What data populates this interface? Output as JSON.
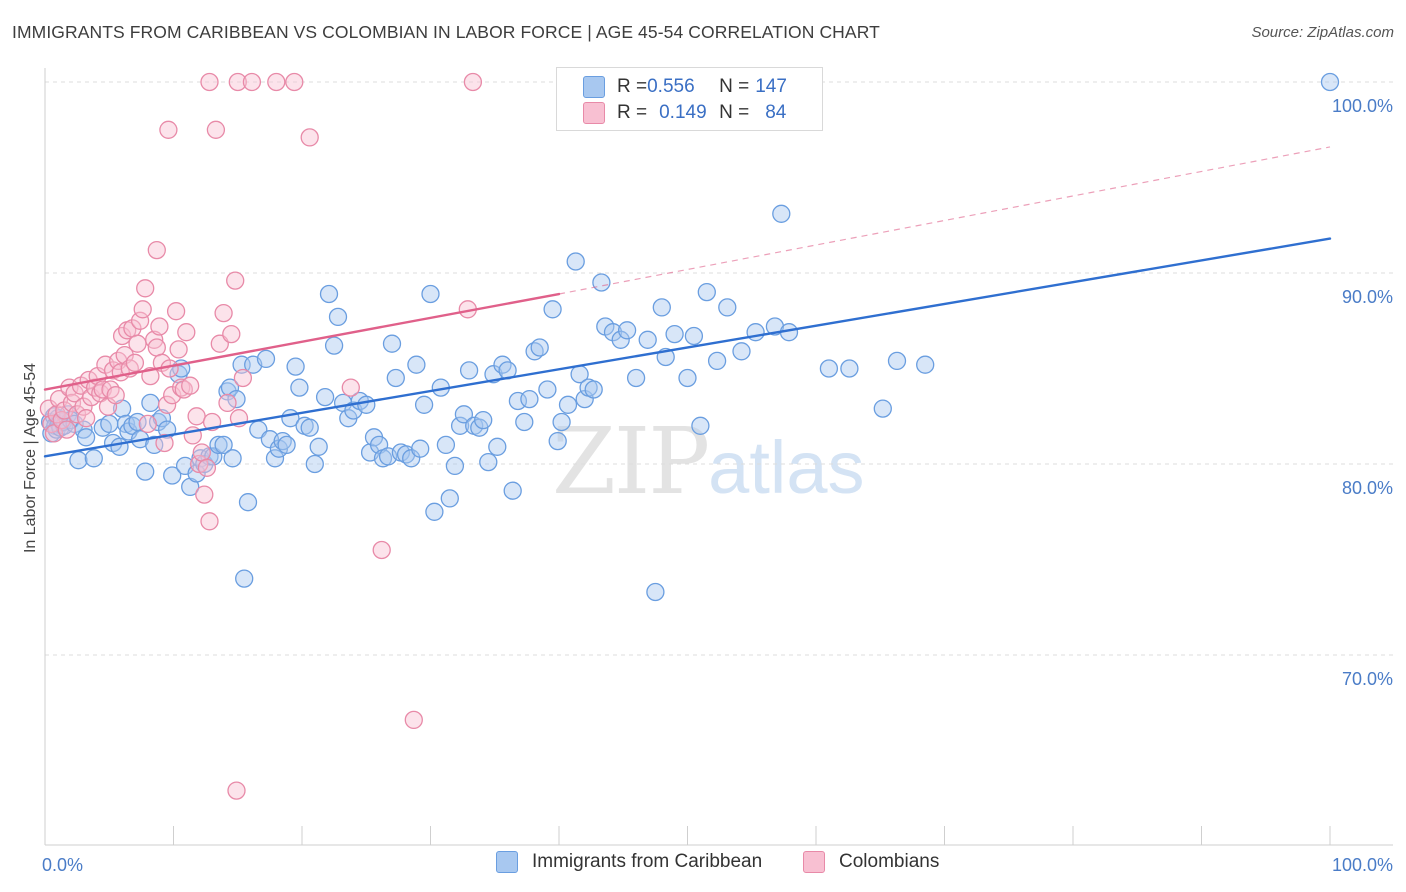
{
  "header": {
    "title": "IMMIGRANTS FROM CARIBBEAN VS COLOMBIAN IN LABOR FORCE | AGE 45-54 CORRELATION CHART",
    "source": "Source: ZipAtlas.com"
  },
  "watermark": {
    "zip": "ZIP",
    "atlas": "atlas"
  },
  "legend": {
    "rows": [
      {
        "r_label": "R = ",
        "r_value": "0.556",
        "n_label": "N = ",
        "n_value": "147",
        "color": "#a8c8f0",
        "border": "#6a9ee0"
      },
      {
        "r_label": "R = ",
        "r_value": "0.149",
        "n_label": "N = ",
        "n_value": "84",
        "color": "#f8c0d2",
        "border": "#e88aa8"
      }
    ]
  },
  "bottom_legend": {
    "items": [
      {
        "label": "Immigrants from Caribbean",
        "color": "#a8c8f0",
        "border": "#6a9ee0"
      },
      {
        "label": "Colombians",
        "color": "#f8c0d2",
        "border": "#e88aa8"
      }
    ]
  },
  "chart_data": {
    "type": "scatter",
    "title": "IMMIGRANTS FROM CARIBBEAN VS COLOMBIAN IN LABOR FORCE | AGE 45-54 CORRELATION CHART",
    "xlabel": "",
    "ylabel": "In Labor Force | Age 45-54",
    "xlim": [
      0,
      100
    ],
    "ylim": [
      60.5,
      101.5
    ],
    "x_tick_labels": [
      "0.0%",
      "100.0%"
    ],
    "y_ticks": [
      70,
      80,
      90,
      100
    ],
    "y_tick_labels": [
      "70.0%",
      "80.0%",
      "90.0%",
      "100.0%"
    ],
    "grid": true,
    "legend_position": "top-center",
    "series": [
      {
        "name": "Immigrants from Caribbean",
        "color": "#6a9ee0",
        "fill": "#a8c8f0",
        "trend": {
          "x": [
            0,
            100
          ],
          "y": [
            80.4,
            91.8
          ],
          "color": "#2f6fd0",
          "style": "solid"
        },
        "points": [
          [
            0.4,
            82.2
          ],
          [
            0.5,
            81.6
          ],
          [
            0.7,
            82.5
          ],
          [
            0.8,
            82.0
          ],
          [
            0.9,
            81.8
          ],
          [
            1.0,
            82.4
          ],
          [
            1.1,
            82.1
          ],
          [
            1.2,
            81.9
          ],
          [
            1.4,
            82.2
          ],
          [
            1.5,
            82.0
          ],
          [
            1.8,
            82.6
          ],
          [
            2.0,
            82.3
          ],
          [
            2.3,
            82.1
          ],
          [
            2.6,
            80.2
          ],
          [
            3.0,
            81.8
          ],
          [
            3.2,
            81.4
          ],
          [
            3.8,
            80.3
          ],
          [
            4.5,
            81.9
          ],
          [
            5.0,
            82.1
          ],
          [
            5.3,
            81.1
          ],
          [
            5.8,
            80.9
          ],
          [
            6.0,
            82.9
          ],
          [
            6.3,
            82.1
          ],
          [
            6.5,
            81.7
          ],
          [
            6.8,
            82.0
          ],
          [
            7.2,
            82.2
          ],
          [
            7.4,
            81.3
          ],
          [
            7.8,
            79.6
          ],
          [
            8.2,
            83.2
          ],
          [
            8.5,
            81.0
          ],
          [
            8.8,
            82.2
          ],
          [
            9.1,
            82.4
          ],
          [
            9.5,
            81.8
          ],
          [
            9.9,
            79.4
          ],
          [
            10.4,
            84.7
          ],
          [
            10.6,
            85.0
          ],
          [
            10.9,
            79.9
          ],
          [
            11.3,
            78.8
          ],
          [
            11.8,
            79.5
          ],
          [
            12.1,
            80.3
          ],
          [
            12.4,
            80.0
          ],
          [
            12.8,
            80.4
          ],
          [
            13.1,
            80.4
          ],
          [
            13.5,
            81.0
          ],
          [
            13.9,
            81.0
          ],
          [
            14.2,
            83.8
          ],
          [
            14.4,
            84.0
          ],
          [
            14.6,
            80.3
          ],
          [
            14.9,
            83.4
          ],
          [
            15.3,
            85.2
          ],
          [
            15.5,
            74.0
          ],
          [
            15.8,
            78.0
          ],
          [
            16.2,
            85.2
          ],
          [
            16.6,
            81.8
          ],
          [
            17.2,
            85.5
          ],
          [
            17.5,
            81.3
          ],
          [
            17.9,
            80.3
          ],
          [
            18.2,
            80.8
          ],
          [
            18.5,
            81.2
          ],
          [
            18.8,
            81.0
          ],
          [
            19.1,
            82.4
          ],
          [
            19.5,
            85.1
          ],
          [
            19.8,
            84.0
          ],
          [
            20.2,
            82.0
          ],
          [
            20.6,
            81.9
          ],
          [
            21.0,
            80.0
          ],
          [
            21.3,
            80.9
          ],
          [
            21.8,
            83.5
          ],
          [
            22.1,
            88.9
          ],
          [
            22.5,
            86.2
          ],
          [
            22.8,
            87.7
          ],
          [
            23.2,
            83.2
          ],
          [
            23.6,
            82.4
          ],
          [
            24.0,
            82.8
          ],
          [
            24.5,
            83.3
          ],
          [
            25.0,
            83.1
          ],
          [
            25.3,
            80.6
          ],
          [
            25.6,
            81.4
          ],
          [
            26.0,
            81.0
          ],
          [
            26.3,
            80.3
          ],
          [
            26.7,
            80.4
          ],
          [
            27.0,
            86.3
          ],
          [
            27.3,
            84.5
          ],
          [
            27.7,
            80.6
          ],
          [
            28.1,
            80.5
          ],
          [
            28.5,
            80.3
          ],
          [
            28.9,
            85.2
          ],
          [
            29.2,
            80.8
          ],
          [
            29.5,
            83.1
          ],
          [
            30.0,
            88.9
          ],
          [
            30.3,
            77.5
          ],
          [
            30.8,
            84.0
          ],
          [
            31.2,
            81.0
          ],
          [
            31.5,
            78.2
          ],
          [
            31.9,
            79.9
          ],
          [
            32.3,
            82.0
          ],
          [
            32.6,
            82.6
          ],
          [
            33.0,
            84.9
          ],
          [
            33.4,
            82.0
          ],
          [
            33.8,
            81.9
          ],
          [
            34.1,
            82.3
          ],
          [
            34.5,
            80.1
          ],
          [
            34.9,
            84.7
          ],
          [
            35.2,
            80.9
          ],
          [
            35.6,
            85.2
          ],
          [
            36.0,
            84.9
          ],
          [
            36.4,
            78.6
          ],
          [
            36.8,
            83.3
          ],
          [
            37.3,
            82.2
          ],
          [
            37.7,
            83.4
          ],
          [
            38.1,
            85.9
          ],
          [
            38.5,
            86.1
          ],
          [
            39.1,
            83.9
          ],
          [
            39.5,
            88.1
          ],
          [
            39.9,
            81.2
          ],
          [
            40.2,
            82.2
          ],
          [
            40.7,
            83.1
          ],
          [
            41.3,
            90.6
          ],
          [
            41.6,
            84.7
          ],
          [
            42.0,
            83.4
          ],
          [
            42.3,
            84.0
          ],
          [
            42.7,
            83.9
          ],
          [
            43.3,
            89.5
          ],
          [
            43.6,
            87.2
          ],
          [
            44.2,
            86.9
          ],
          [
            44.8,
            86.5
          ],
          [
            45.3,
            87.0
          ],
          [
            46.0,
            84.5
          ],
          [
            46.9,
            86.5
          ],
          [
            47.5,
            73.3
          ],
          [
            48.0,
            88.2
          ],
          [
            48.3,
            85.6
          ],
          [
            49.0,
            86.8
          ],
          [
            50.0,
            84.5
          ],
          [
            50.5,
            86.7
          ],
          [
            51.0,
            82.0
          ],
          [
            51.5,
            89.0
          ],
          [
            52.3,
            85.4
          ],
          [
            53.1,
            88.2
          ],
          [
            54.2,
            85.9
          ],
          [
            55.3,
            86.9
          ],
          [
            56.8,
            87.2
          ],
          [
            57.3,
            93.1
          ],
          [
            57.9,
            86.9
          ],
          [
            61.0,
            85.0
          ],
          [
            62.6,
            85.0
          ],
          [
            65.2,
            82.9
          ],
          [
            66.3,
            85.4
          ],
          [
            68.5,
            85.2
          ],
          [
            100.0,
            100.0
          ]
        ]
      },
      {
        "name": "Colombians",
        "color": "#e88aa8",
        "fill": "#f8c0d2",
        "trend": {
          "x": [
            0,
            40
          ],
          "y": [
            83.9,
            88.9
          ],
          "x_dashed": [
            40,
            100
          ],
          "y_dashed": [
            88.9,
            96.6
          ],
          "color": "#e0608a",
          "style": "solid+dashed"
        },
        "points": [
          [
            0.3,
            82.9
          ],
          [
            0.5,
            82.1
          ],
          [
            0.7,
            81.6
          ],
          [
            0.9,
            82.6
          ],
          [
            1.1,
            83.4
          ],
          [
            1.3,
            82.3
          ],
          [
            1.5,
            82.8
          ],
          [
            1.7,
            81.8
          ],
          [
            1.9,
            84.0
          ],
          [
            2.1,
            83.2
          ],
          [
            2.3,
            83.7
          ],
          [
            2.5,
            82.6
          ],
          [
            2.8,
            84.1
          ],
          [
            3.0,
            83.0
          ],
          [
            3.2,
            82.4
          ],
          [
            3.4,
            84.4
          ],
          [
            3.6,
            83.5
          ],
          [
            3.9,
            84.0
          ],
          [
            4.1,
            84.6
          ],
          [
            4.3,
            83.7
          ],
          [
            4.5,
            83.9
          ],
          [
            4.7,
            85.2
          ],
          [
            4.9,
            83.0
          ],
          [
            5.1,
            83.9
          ],
          [
            5.3,
            84.9
          ],
          [
            5.5,
            83.6
          ],
          [
            5.7,
            85.4
          ],
          [
            5.9,
            84.8
          ],
          [
            6.0,
            86.7
          ],
          [
            6.2,
            85.7
          ],
          [
            6.4,
            87.0
          ],
          [
            6.6,
            85.0
          ],
          [
            6.8,
            87.1
          ],
          [
            7.0,
            85.3
          ],
          [
            7.2,
            86.3
          ],
          [
            7.4,
            87.5
          ],
          [
            7.6,
            88.1
          ],
          [
            7.8,
            89.2
          ],
          [
            8.0,
            82.1
          ],
          [
            8.2,
            84.6
          ],
          [
            8.5,
            86.5
          ],
          [
            8.7,
            86.1
          ],
          [
            8.9,
            87.2
          ],
          [
            9.1,
            85.3
          ],
          [
            9.3,
            81.1
          ],
          [
            9.5,
            83.1
          ],
          [
            9.7,
            85.0
          ],
          [
            9.9,
            83.6
          ],
          [
            10.2,
            88.0
          ],
          [
            10.4,
            86.0
          ],
          [
            10.6,
            84.0
          ],
          [
            10.8,
            83.9
          ],
          [
            11.0,
            86.9
          ],
          [
            11.3,
            84.1
          ],
          [
            11.5,
            81.5
          ],
          [
            11.8,
            82.5
          ],
          [
            12.0,
            80.0
          ],
          [
            12.2,
            80.6
          ],
          [
            12.4,
            78.4
          ],
          [
            12.6,
            79.8
          ],
          [
            12.8,
            77.0
          ],
          [
            13.0,
            82.2
          ],
          [
            13.3,
            97.5
          ],
          [
            13.6,
            86.3
          ],
          [
            13.9,
            87.9
          ],
          [
            14.2,
            83.2
          ],
          [
            14.5,
            86.8
          ],
          [
            14.8,
            89.6
          ],
          [
            15.1,
            82.4
          ],
          [
            15.4,
            84.5
          ],
          [
            8.7,
            91.2
          ],
          [
            9.6,
            97.5
          ],
          [
            12.8,
            100.0
          ],
          [
            15.0,
            100.0
          ],
          [
            16.1,
            100.0
          ],
          [
            18.0,
            100.0
          ],
          [
            19.4,
            100.0
          ],
          [
            20.6,
            97.1
          ],
          [
            23.8,
            84.0
          ],
          [
            26.2,
            75.5
          ],
          [
            28.7,
            66.6
          ],
          [
            14.9,
            62.9
          ],
          [
            32.9,
            88.1
          ],
          [
            33.3,
            100.0
          ]
        ]
      }
    ]
  }
}
